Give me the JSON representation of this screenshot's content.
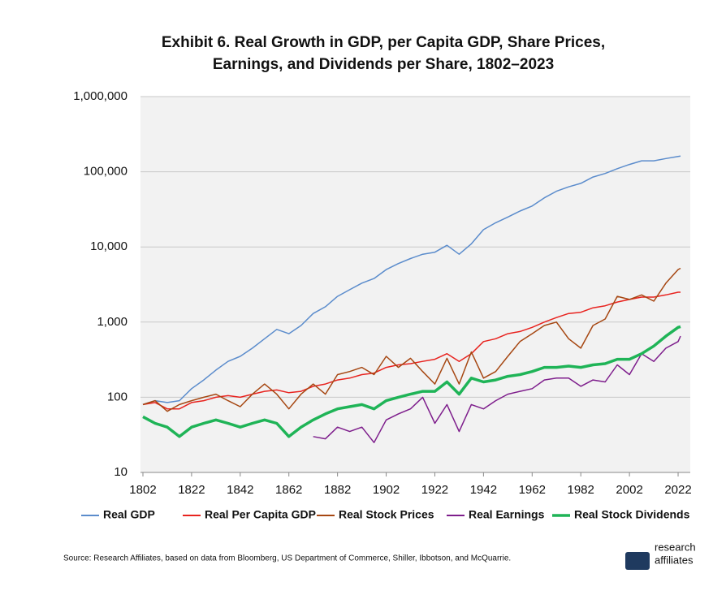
{
  "chart_data": {
    "type": "line",
    "title": "Exhibit 6. Real Growth in GDP, per Capita GDP, Share Prices,",
    "subtitle": "Earnings, and Dividends per Share, 1802–2023",
    "x": [
      1802,
      1807,
      1812,
      1817,
      1822,
      1827,
      1832,
      1837,
      1842,
      1847,
      1852,
      1857,
      1862,
      1867,
      1872,
      1877,
      1882,
      1887,
      1892,
      1897,
      1902,
      1907,
      1912,
      1917,
      1922,
      1927,
      1932,
      1937,
      1942,
      1947,
      1952,
      1957,
      1962,
      1967,
      1972,
      1977,
      1982,
      1987,
      1992,
      1997,
      2002,
      2007,
      2012,
      2017,
      2022,
      2023
    ],
    "series": [
      {
        "name": "Real GDP",
        "color": "#5b8ccc",
        "values": [
          80,
          90,
          85,
          90,
          130,
          170,
          230,
          300,
          350,
          450,
          600,
          800,
          700,
          900,
          1300,
          1600,
          2200,
          2700,
          3300,
          3800,
          5000,
          6000,
          7000,
          8000,
          8500,
          10500,
          8000,
          11000,
          17000,
          21000,
          25000,
          30000,
          35000,
          45000,
          55000,
          63000,
          70000,
          85000,
          95000,
          110000,
          125000,
          140000,
          140000,
          150000,
          160000,
          162000
        ]
      },
      {
        "name": "Real Per Capita GDP",
        "color": "#e8231f",
        "values": [
          80,
          85,
          70,
          70,
          85,
          90,
          100,
          105,
          100,
          110,
          120,
          125,
          115,
          120,
          140,
          150,
          170,
          180,
          200,
          210,
          250,
          270,
          280,
          300,
          320,
          380,
          300,
          380,
          550,
          600,
          700,
          750,
          850,
          1000,
          1150,
          1300,
          1350,
          1550,
          1650,
          1850,
          2000,
          2150,
          2150,
          2300,
          2500,
          2500
        ]
      },
      {
        "name": "Real Stock Prices",
        "color": "#a64712",
        "values": [
          80,
          90,
          65,
          80,
          90,
          100,
          110,
          90,
          75,
          110,
          150,
          110,
          70,
          110,
          150,
          110,
          200,
          220,
          250,
          200,
          350,
          250,
          330,
          220,
          150,
          330,
          150,
          400,
          180,
          220,
          350,
          550,
          700,
          900,
          1000,
          600,
          450,
          900,
          1100,
          2200,
          2000,
          2300,
          1900,
          3300,
          5000,
          5200
        ]
      },
      {
        "name": "Real Earnings",
        "color": "#7e1e8c",
        "values": [
          null,
          null,
          null,
          null,
          null,
          null,
          null,
          null,
          null,
          null,
          null,
          null,
          null,
          null,
          30,
          28,
          40,
          35,
          40,
          25,
          50,
          60,
          70,
          100,
          45,
          80,
          35,
          80,
          70,
          90,
          110,
          120,
          130,
          170,
          180,
          180,
          140,
          170,
          160,
          270,
          200,
          380,
          300,
          450,
          550,
          650
        ]
      },
      {
        "name": "Real Stock Dividends",
        "color": "#1fb457",
        "values": [
          55,
          45,
          40,
          30,
          40,
          45,
          50,
          45,
          40,
          45,
          50,
          45,
          30,
          40,
          50,
          60,
          70,
          75,
          80,
          70,
          90,
          100,
          110,
          120,
          120,
          160,
          110,
          180,
          160,
          170,
          190,
          200,
          220,
          250,
          250,
          260,
          250,
          270,
          280,
          320,
          320,
          380,
          480,
          650,
          850,
          870
        ]
      }
    ],
    "xlim": [
      1801,
      2027
    ],
    "xticks": [
      1802,
      1822,
      1842,
      1862,
      1882,
      1902,
      1922,
      1942,
      1962,
      1982,
      2002,
      2022
    ],
    "ylim": [
      10,
      1000000
    ],
    "log_y": true,
    "yticks": [
      10,
      100,
      {
        "value": 1000,
        "label": "1,000"
      },
      {
        "value": 10000,
        "label": "10,000"
      },
      {
        "value": 100000,
        "label": "100,000"
      },
      {
        "value": 1000000,
        "label": "1,000,000"
      }
    ],
    "grid": true,
    "legend": "bottom",
    "source": "Source: Research Affiliates, based on data from Bloomberg, US Department of Commerce, Shiller, Ibbotson, and McQuarrie.",
    "logo": [
      "research",
      "affiliates"
    ]
  }
}
